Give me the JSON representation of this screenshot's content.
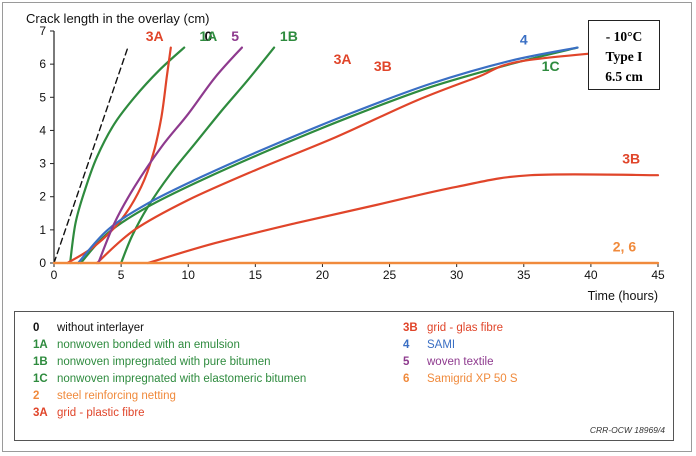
{
  "colors": {
    "0": "#111111",
    "1A": "#2e8b3e",
    "1B": "#2e8b3e",
    "1C": "#2e8b3e",
    "2": "#f08a3c",
    "3A": "#e0452a",
    "3B": "#e0452a",
    "4": "#3a6fc4",
    "5": "#8e3a8e",
    "6": "#f08a3c"
  },
  "conditions": [
    "- 10°C",
    "Type I",
    "6.5 cm"
  ],
  "source": "CRR-OCW 18969/4",
  "legend": [
    {
      "code": "0",
      "text": "without interlayer"
    },
    {
      "code": "1A",
      "text": "nonwoven bonded with an emulsion"
    },
    {
      "code": "1B",
      "text": "nonwoven impregnated with pure bitumen"
    },
    {
      "code": "1C",
      "text": "nonwoven impregnated with elastomeric bitumen"
    },
    {
      "code": "2",
      "text": "steel reinforcing netting"
    },
    {
      "code": "3A",
      "text": "grid - plastic fibre"
    },
    {
      "code": "3B",
      "text": "grid - glas fibre"
    },
    {
      "code": "4",
      "text": "SAMI"
    },
    {
      "code": "5",
      "text": "woven textile"
    },
    {
      "code": "6",
      "text": "Samigrid XP 50 S"
    }
  ],
  "chart_data": {
    "type": "line",
    "title": "Crack length in the overlay (cm)",
    "xlabel": "Time (hours)",
    "ylabel": "Crack length in the overlay (cm)",
    "xlim": [
      0,
      45
    ],
    "ylim": [
      0,
      7
    ],
    "xticks": [
      0,
      5,
      10,
      15,
      20,
      25,
      30,
      35,
      40,
      45
    ],
    "yticks": [
      0,
      1,
      2,
      3,
      4,
      5,
      6,
      7
    ],
    "grid": false,
    "series": [
      {
        "name": "0",
        "dashed": true,
        "x": [
          0,
          5.5
        ],
        "y": [
          0,
          6.5
        ]
      },
      {
        "name": "1A",
        "x": [
          1.2,
          1.6,
          2.3,
          3.2,
          4.5,
          6,
          7.8,
          9.7
        ],
        "y": [
          0,
          1.2,
          2.2,
          3.2,
          4.2,
          5.0,
          5.8,
          6.5
        ]
      },
      {
        "name": "1B",
        "x": [
          5,
          5.8,
          7,
          8.7,
          10.5,
          12.5,
          14.4,
          16.4
        ],
        "y": [
          0,
          0.8,
          1.7,
          2.7,
          3.6,
          4.6,
          5.5,
          6.5
        ]
      },
      {
        "name": "1C",
        "x": [
          2,
          4,
          7,
          11,
          16,
          22,
          28,
          34,
          39
        ],
        "y": [
          0,
          0.9,
          1.7,
          2.5,
          3.4,
          4.4,
          5.3,
          6.0,
          6.5
        ]
      },
      {
        "name": "2",
        "x": [
          0,
          45
        ],
        "y": [
          0,
          0
        ]
      },
      {
        "name": "3A",
        "x": [
          1,
          3,
          5,
          6.5,
          7.4,
          8,
          8.4,
          8.7
        ],
        "y": [
          0,
          0.5,
          1.3,
          2.3,
          3.3,
          4.4,
          5.6,
          6.5
        ]
      },
      {
        "name": "3B",
        "x": [
          3.2,
          6,
          10,
          15,
          21,
          27,
          31.5,
          35,
          45
        ],
        "y": [
          0,
          1.0,
          1.9,
          2.8,
          3.8,
          4.9,
          5.6,
          6.1,
          6.5
        ]
      },
      {
        "name": "3B",
        "x": [
          7,
          12,
          18,
          24,
          30,
          35.5,
          45
        ],
        "y": [
          0,
          0.6,
          1.2,
          1.75,
          2.3,
          2.65,
          2.65
        ]
      },
      {
        "name": "4",
        "x": [
          1.8,
          4,
          7,
          11,
          16,
          22,
          28,
          34,
          39
        ],
        "y": [
          0,
          1.0,
          1.8,
          2.6,
          3.5,
          4.5,
          5.4,
          6.1,
          6.5
        ]
      },
      {
        "name": "5",
        "x": [
          3.3,
          4.5,
          6,
          8,
          10,
          12,
          14
        ],
        "y": [
          0,
          1.2,
          2.3,
          3.5,
          4.5,
          5.6,
          6.5
        ]
      },
      {
        "name": "6",
        "x": [
          0,
          45
        ],
        "y": [
          0,
          0
        ]
      }
    ],
    "annotations": [
      {
        "text": "0",
        "color": "0",
        "x": 11.5,
        "y": 6.7
      },
      {
        "text": "3A",
        "color": "3A",
        "x": 7.5,
        "y": 6.7
      },
      {
        "text": "1A",
        "color": "1A",
        "x": 11.5,
        "y": 6.7
      },
      {
        "text": "5",
        "color": "5",
        "x": 13.5,
        "y": 6.7
      },
      {
        "text": "1B",
        "color": "1B",
        "x": 17.5,
        "y": 6.7
      },
      {
        "text": "3A",
        "color": "3A",
        "x": 21.5,
        "y": 6.0
      },
      {
        "text": "3B",
        "color": "3B",
        "x": 24.5,
        "y": 5.8
      },
      {
        "text": "4",
        "color": "4",
        "x": 35,
        "y": 6.6
      },
      {
        "text": "1C",
        "color": "1C",
        "x": 37,
        "y": 5.8
      },
      {
        "text": "3B",
        "color": "3B",
        "x": 43,
        "y": 3.0
      },
      {
        "text": "2, 6",
        "color": "2",
        "x": 42.5,
        "y": 0.35
      }
    ]
  }
}
